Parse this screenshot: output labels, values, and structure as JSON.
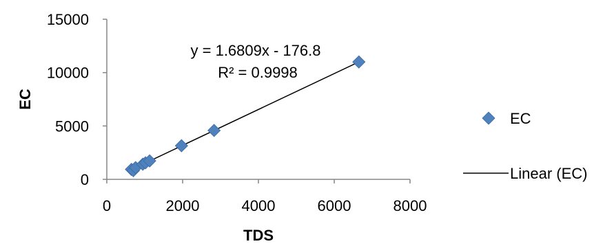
{
  "chart_data": {
    "type": "scatter",
    "title": "",
    "xlabel": "TDS",
    "ylabel": "EC",
    "xlim": [
      0,
      8000
    ],
    "ylim": [
      0,
      15000
    ],
    "xticks": [
      "0",
      "2000",
      "4000",
      "6000",
      "8000"
    ],
    "yticks": [
      "0",
      "5000",
      "10000",
      "15000"
    ],
    "grid": false,
    "legend_position": "right",
    "series": [
      {
        "name": "EC",
        "marker": "diamond",
        "color": "#4f81bd",
        "points": [
          {
            "x": 650,
            "y": 930
          },
          {
            "x": 700,
            "y": 820
          },
          {
            "x": 760,
            "y": 1100
          },
          {
            "x": 950,
            "y": 1420
          },
          {
            "x": 1020,
            "y": 1550
          },
          {
            "x": 1130,
            "y": 1730
          },
          {
            "x": 1970,
            "y": 3150
          },
          {
            "x": 2830,
            "y": 4580
          },
          {
            "x": 6650,
            "y": 11000
          }
        ]
      }
    ],
    "trendline": {
      "name": "Linear (EC)",
      "type": "linear",
      "slope": 1.6809,
      "intercept": -176.8,
      "x_range": [
        650,
        6650
      ],
      "color": "#000000",
      "equation_label": "y = 1.6809x - 176.8",
      "r2_label": "R² = 0.9998"
    }
  }
}
